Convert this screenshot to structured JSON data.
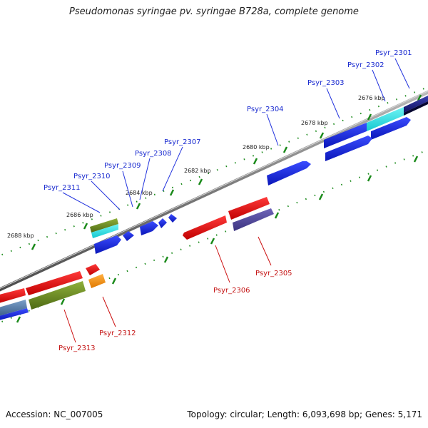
{
  "title": "Pseudomonas syringae pv. syringae B728a, complete genome",
  "footer": {
    "accession": "Accession: NC_007005",
    "summary": "Topology: circular; Length: 6,093,698 bp; Genes: 5,171"
  },
  "ticks": [
    "2676 kbp",
    "2678 kbp",
    "2680 kbp",
    "2682 kbp",
    "2684 kbp",
    "2686 kbp",
    "2688 kbp"
  ],
  "genes_forward": [
    "Psyr_2301",
    "Psyr_2302",
    "Psyr_2303",
    "Psyr_2304",
    "Psyr_2307",
    "Psyr_2308",
    "Psyr_2309",
    "Psyr_2310",
    "Psyr_2311"
  ],
  "genes_reverse": [
    "Psyr_2305",
    "Psyr_2306",
    "Psyr_2312",
    "Psyr_2313"
  ],
  "colors": {
    "forward_label": "#1a2bd0",
    "reverse_label": "#c41212",
    "backbone": "#8a8a8a",
    "tick": "#1a8a1a"
  }
}
